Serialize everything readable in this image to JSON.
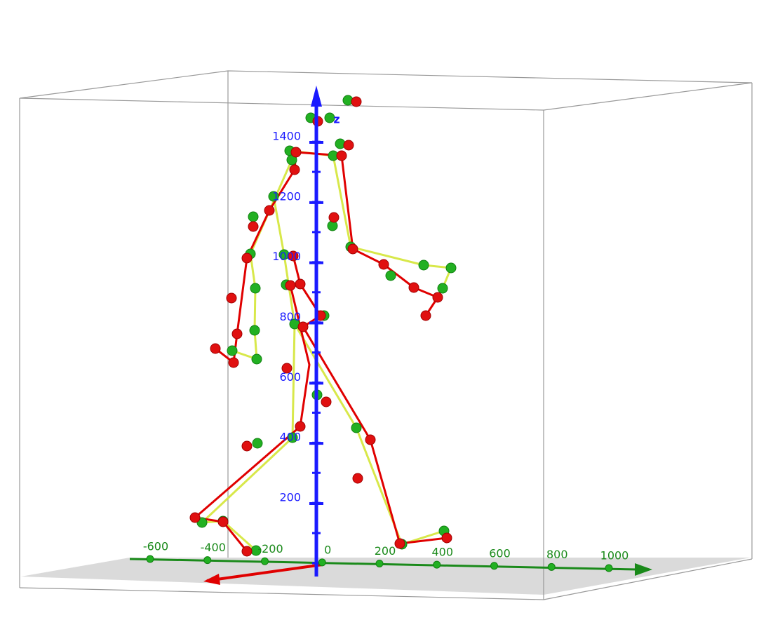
{
  "chart_data": {
    "type": "scatter3d",
    "z_axis_label": "z",
    "zticks": [
      200,
      400,
      600,
      800,
      1000,
      1200,
      1400
    ],
    "yticks": [
      -600,
      -400,
      -200,
      0,
      200,
      400,
      600,
      800,
      1000
    ],
    "z_color": "#1a1aff",
    "y_color": "#1a8a1a",
    "x_color": "#e00000"
  }
}
